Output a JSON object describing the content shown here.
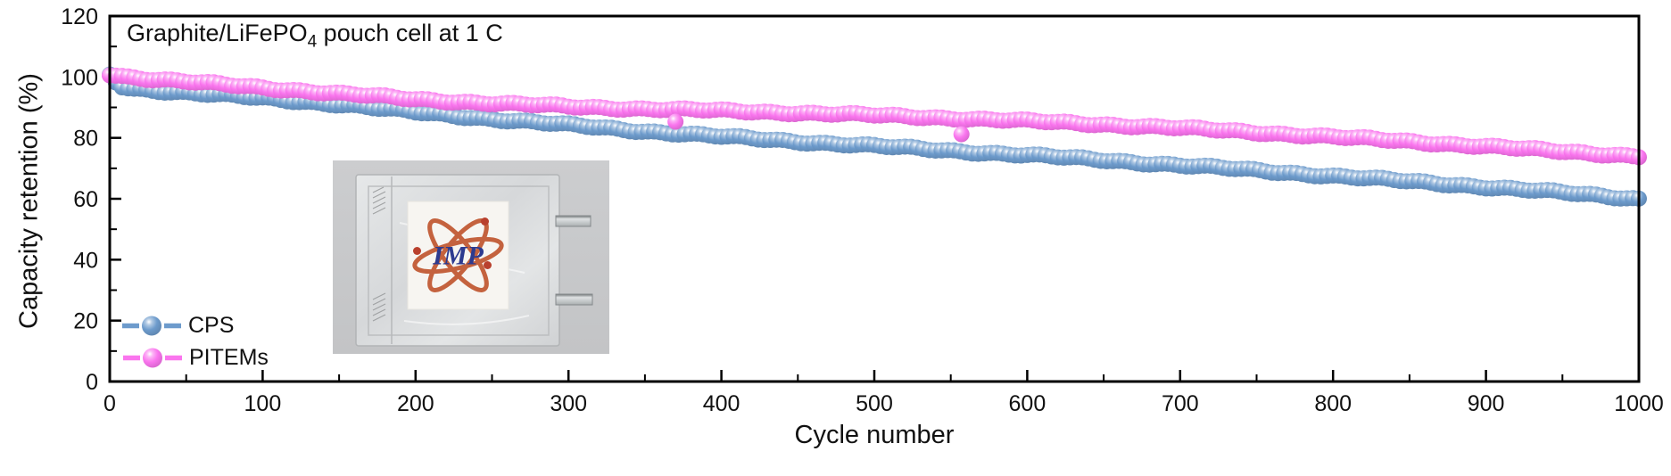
{
  "annotation": {
    "prefix": "Graphite/LiFePO",
    "sub": "4",
    "suffix": " pouch cell at 1 C"
  },
  "chart_data": {
    "type": "scatter",
    "title": "Graphite/LiFePO4 pouch cell at 1 C",
    "xlabel": "Cycle number",
    "ylabel": "Capacity retention (%)",
    "xlim": [
      0,
      1000
    ],
    "ylim": [
      0,
      120
    ],
    "x_major_ticks": [
      0,
      100,
      200,
      300,
      400,
      500,
      600,
      700,
      800,
      900,
      1000
    ],
    "x_minor_step": 50,
    "y_major_ticks": [
      0,
      20,
      40,
      60,
      80,
      100,
      120
    ],
    "y_minor_step": 10,
    "grid": false,
    "legend_position": "lower-left",
    "series": [
      {
        "name": "CPS",
        "color": "#6d9bcc",
        "x": [
          0,
          4,
          8,
          15,
          25,
          50,
          100,
          150,
          200,
          250,
          300,
          350,
          400,
          450,
          500,
          550,
          600,
          650,
          700,
          750,
          800,
          850,
          900,
          950,
          1000
        ],
        "y": [
          100.8,
          98.5,
          97.0,
          96.2,
          95.8,
          94.8,
          93.0,
          91.0,
          88.4,
          86.2,
          84.2,
          82.2,
          80.4,
          78.8,
          77.3,
          75.8,
          74.3,
          72.7,
          71.0,
          69.3,
          67.5,
          65.7,
          63.9,
          62.0,
          60.0
        ],
        "outliers": []
      },
      {
        "name": "PITEMs",
        "color": "#fa75ee",
        "x": [
          0,
          10,
          25,
          50,
          100,
          150,
          200,
          250,
          300,
          350,
          400,
          450,
          500,
          550,
          600,
          650,
          700,
          750,
          800,
          850,
          900,
          950,
          1000
        ],
        "y": [
          101.0,
          100.2,
          99.4,
          98.4,
          96.5,
          94.5,
          92.7,
          91.3,
          90.3,
          89.5,
          88.9,
          88.2,
          87.4,
          86.5,
          85.5,
          84.4,
          83.2,
          81.8,
          80.3,
          78.8,
          77.2,
          75.5,
          74.0
        ],
        "outliers": [
          {
            "x": 370,
            "y": 85.3
          },
          {
            "x": 557,
            "y": 81.2
          }
        ]
      }
    ]
  },
  "inset": {
    "logo_text": "IMP",
    "logo_orbit_color": "#c4623e",
    "logo_text_color": "#2c3a8f",
    "electron_color": "#b9402d"
  }
}
